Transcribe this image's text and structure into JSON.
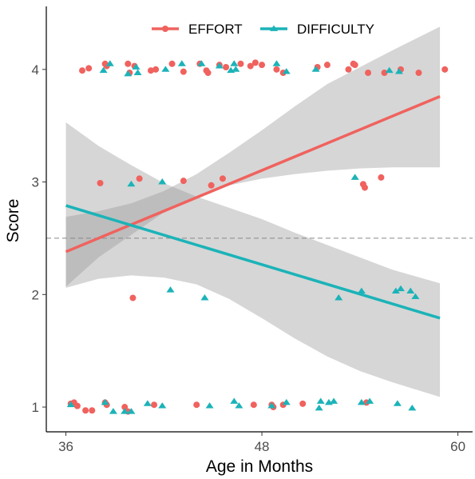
{
  "chart_data": {
    "type": "scatter",
    "xlabel": "Age in Months",
    "ylabel": "Score",
    "xlim": [
      34.8,
      60.9
    ],
    "ylim": [
      0.78,
      4.56
    ],
    "xticks": [
      36,
      48,
      60
    ],
    "yticks": [
      1,
      2,
      3,
      4
    ],
    "reference_line_y": 2.5,
    "legend_position": "top",
    "colors": {
      "effort": "#F0625E",
      "difficulty": "#1BB3B8",
      "ribbon": "#999999",
      "refline": "#888888"
    },
    "series": [
      {
        "name": "EFFORT",
        "marker": "circle",
        "fit": {
          "x": [
            36,
            58.9
          ],
          "y": [
            2.38,
            3.76
          ]
        },
        "ribbon": {
          "x": [
            36,
            38,
            40,
            42,
            44,
            46,
            48,
            50,
            52,
            54,
            56,
            58.9
          ],
          "lower": [
            2.07,
            2.33,
            2.53,
            2.73,
            2.87,
            2.97,
            3.03,
            3.07,
            3.1,
            3.12,
            3.13,
            3.13
          ],
          "upper": [
            2.69,
            2.74,
            2.81,
            2.92,
            3.07,
            3.26,
            3.46,
            3.67,
            3.87,
            4.02,
            4.17,
            4.38
          ]
        },
        "points": [
          [
            36.3,
            1.03
          ],
          [
            36.5,
            1.04
          ],
          [
            36.7,
            1.01
          ],
          [
            37.2,
            0.97
          ],
          [
            37.6,
            0.97
          ],
          [
            38.4,
            1.04
          ],
          [
            38.5,
            1.02
          ],
          [
            39.6,
            1.0
          ],
          [
            39.8,
            0.96
          ],
          [
            41.4,
            1.02
          ],
          [
            44.0,
            1.02
          ],
          [
            47.5,
            1.02
          ],
          [
            48.6,
            1.02
          ],
          [
            48.7,
            1.0
          ],
          [
            49.3,
            1.02
          ],
          [
            50.5,
            1.03
          ],
          [
            54.4,
            1.04
          ],
          [
            40.1,
            1.97
          ],
          [
            38.1,
            2.99
          ],
          [
            40.5,
            3.03
          ],
          [
            43.2,
            3.01
          ],
          [
            44.9,
            2.97
          ],
          [
            45.6,
            3.03
          ],
          [
            54.2,
            2.98
          ],
          [
            54.3,
            2.95
          ],
          [
            55.3,
            3.04
          ],
          [
            37.0,
            3.99
          ],
          [
            37.4,
            4.01
          ],
          [
            38.4,
            4.05
          ],
          [
            38.5,
            4.03
          ],
          [
            39.8,
            4.05
          ],
          [
            39.9,
            3.97
          ],
          [
            40.2,
            4.03
          ],
          [
            41.2,
            3.99
          ],
          [
            41.5,
            4.0
          ],
          [
            42.5,
            4.05
          ],
          [
            43.2,
            3.98
          ],
          [
            44.2,
            4.05
          ],
          [
            44.6,
            3.99
          ],
          [
            44.7,
            3.97
          ],
          [
            45.4,
            4.04
          ],
          [
            45.8,
            4.02
          ],
          [
            46.7,
            4.05
          ],
          [
            47.3,
            4.03
          ],
          [
            47.6,
            4.06
          ],
          [
            48.0,
            4.04
          ],
          [
            48.9,
            4.0
          ],
          [
            49.3,
            3.97
          ],
          [
            51.4,
            4.02
          ],
          [
            52.0,
            4.04
          ],
          [
            53.3,
            4.0
          ],
          [
            53.6,
            4.05
          ],
          [
            53.7,
            4.04
          ],
          [
            54.5,
            3.97
          ],
          [
            55.5,
            3.97
          ],
          [
            56.5,
            4.0
          ],
          [
            57.6,
            3.97
          ],
          [
            59.2,
            4.0
          ]
        ]
      },
      {
        "name": "DIFFICULTY",
        "marker": "triangle",
        "fit": {
          "x": [
            36,
            58.9
          ],
          "y": [
            2.79,
            1.79
          ]
        },
        "ribbon": {
          "x": [
            36,
            38,
            40,
            42,
            44,
            46,
            48,
            50,
            52,
            54,
            56,
            58.9
          ],
          "lower": [
            2.06,
            2.14,
            2.17,
            2.15,
            2.09,
            1.96,
            1.79,
            1.61,
            1.45,
            1.32,
            1.22,
            1.09
          ],
          "upper": [
            3.53,
            3.32,
            3.15,
            2.99,
            2.87,
            2.77,
            2.67,
            2.55,
            2.44,
            2.33,
            2.22,
            2.1
          ]
        },
        "points": [
          [
            36.3,
            1.02
          ],
          [
            38.4,
            1.04
          ],
          [
            38.9,
            0.96
          ],
          [
            39.6,
            0.96
          ],
          [
            40.0,
            0.96
          ],
          [
            41.0,
            1.03
          ],
          [
            41.9,
            1.01
          ],
          [
            44.8,
            1.01
          ],
          [
            46.3,
            1.05
          ],
          [
            46.6,
            1.01
          ],
          [
            48.6,
            1.01
          ],
          [
            49.5,
            1.04
          ],
          [
            51.5,
            0.99
          ],
          [
            51.6,
            1.05
          ],
          [
            52.1,
            1.04
          ],
          [
            52.4,
            1.05
          ],
          [
            54.1,
            1.04
          ],
          [
            54.6,
            1.05
          ],
          [
            56.3,
            1.03
          ],
          [
            57.2,
            0.99
          ],
          [
            42.4,
            2.04
          ],
          [
            44.5,
            1.97
          ],
          [
            52.7,
            1.97
          ],
          [
            54.1,
            2.03
          ],
          [
            56.2,
            2.03
          ],
          [
            56.5,
            2.05
          ],
          [
            57.1,
            2.03
          ],
          [
            57.4,
            1.98
          ],
          [
            40.0,
            2.98
          ],
          [
            41.9,
            3.0
          ],
          [
            53.7,
            3.04
          ],
          [
            38.3,
            3.99
          ],
          [
            38.7,
            4.05
          ],
          [
            39.8,
            3.96
          ],
          [
            40.3,
            4.02
          ],
          [
            40.4,
            3.97
          ],
          [
            42.1,
            4.0
          ],
          [
            43.1,
            4.05
          ],
          [
            44.3,
            4.05
          ],
          [
            45.4,
            4.03
          ],
          [
            46.1,
            3.99
          ],
          [
            46.3,
            4.05
          ],
          [
            46.4,
            4.0
          ],
          [
            48.9,
            4.05
          ],
          [
            49.5,
            3.98
          ],
          [
            51.3,
            4.0
          ],
          [
            55.8,
            3.99
          ],
          [
            56.4,
            3.98
          ]
        ]
      }
    ]
  }
}
